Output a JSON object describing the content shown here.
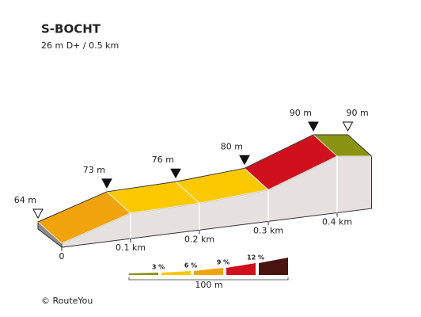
{
  "chart_data": {
    "type": "profile",
    "title": "S-BOCHT",
    "subtitle": "26 m D+ / 0.5 km",
    "x": [
      0,
      0.1,
      0.2,
      0.3,
      0.4,
      0.45
    ],
    "values": [
      64,
      73,
      76,
      80,
      90,
      90
    ],
    "value_labels": [
      "64 m",
      "73 m",
      "76 m",
      "80 m",
      "90 m",
      "90 m"
    ],
    "segment_colors": [
      "#f0a30a",
      "#fcc800",
      "#fcc800",
      "#d0101c",
      "#8a9412"
    ],
    "xticks": [
      0,
      {
        "value": 0.1,
        "label": "0.1 km"
      },
      {
        "value": 0.2,
        "label": "0.2 km"
      },
      {
        "value": 0.3,
        "label": "0.3 km"
      },
      {
        "value": 0.4,
        "label": "0.4 km"
      }
    ],
    "legend": {
      "labels": [
        "3 %",
        "6 %",
        "9 %",
        "12 %"
      ],
      "colors": [
        "#8a9412",
        "#fcc800",
        "#f0a30a",
        "#d0101c",
        "#4a1510"
      ],
      "scale_label": "100 m"
    },
    "footer": "© RouteYou"
  }
}
